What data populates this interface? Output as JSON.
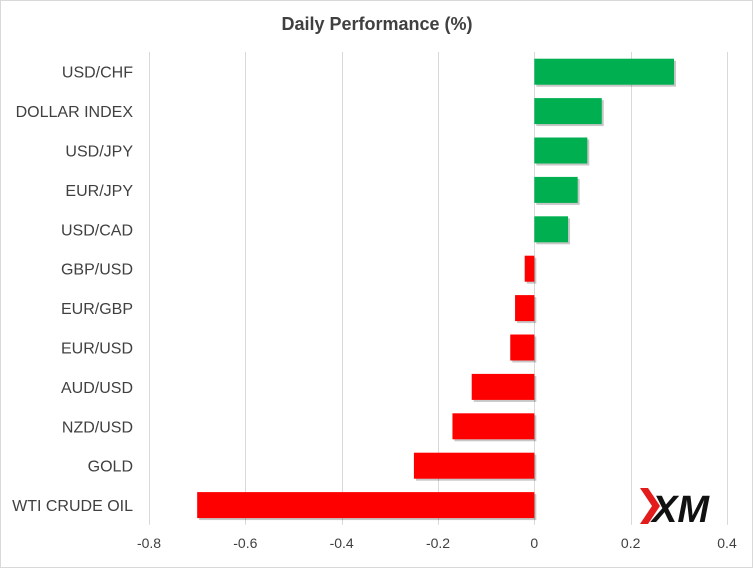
{
  "chart_data": {
    "type": "bar",
    "orientation": "horizontal",
    "title": "Daily Performance  (%)",
    "categories": [
      "USD/CHF",
      "DOLLAR INDEX",
      "USD/JPY",
      "EUR/JPY",
      "USD/CAD",
      "GBP/USD",
      "EUR/GBP",
      "EUR/USD",
      "AUD/USD",
      "NZD/USD",
      "GOLD",
      "WTI CRUDE OIL"
    ],
    "values": [
      0.29,
      0.14,
      0.11,
      0.09,
      0.07,
      -0.02,
      -0.04,
      -0.05,
      -0.13,
      -0.17,
      -0.25,
      -0.7
    ],
    "xlim": [
      -0.8,
      0.4
    ],
    "xticks": [
      "-0.8",
      "-0.6",
      "-0.4",
      "-0.2",
      "0",
      "0.2",
      "0.4"
    ],
    "xtick_values": [
      -0.8,
      -0.6,
      -0.4,
      -0.2,
      0,
      0.2,
      0.4
    ],
    "xlabel": "",
    "ylabel": "",
    "grid": true,
    "colors": {
      "positive": "#00b050",
      "negative": "#ff0000"
    }
  },
  "logo": {
    "text": "XM",
    "icon": "xm-logo",
    "color": "#111111",
    "accent": "#e41b1b"
  }
}
